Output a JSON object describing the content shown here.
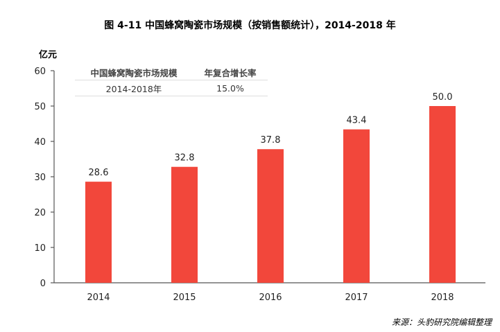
{
  "title": "图 4-11  中国蜂窝陶瓷市场规模（按销售额统计），2014-2018 年",
  "unit": "亿元",
  "source": "来源：头豹研究院编辑整理",
  "inset_table": {
    "headers": [
      "中国蜂窝陶瓷市场规模",
      "年复合增长率"
    ],
    "row": [
      "2014-2018年",
      "15.0%"
    ]
  },
  "colors": {
    "bar": "#f2473b"
  },
  "chart_data": {
    "type": "bar",
    "title": "图 4-11  中国蜂窝陶瓷市场规模（按销售额统计），2014-2018 年",
    "xlabel": "",
    "ylabel": "亿元",
    "categories": [
      "2014",
      "2015",
      "2016",
      "2017",
      "2018"
    ],
    "values": [
      28.6,
      32.8,
      37.8,
      43.4,
      50.0
    ],
    "labels": [
      "28.6",
      "32.8",
      "37.8",
      "43.4",
      "50.0"
    ],
    "ylim": [
      0,
      60
    ],
    "yticks": [
      0,
      10,
      20,
      30,
      40,
      50,
      60
    ],
    "grid": false
  }
}
